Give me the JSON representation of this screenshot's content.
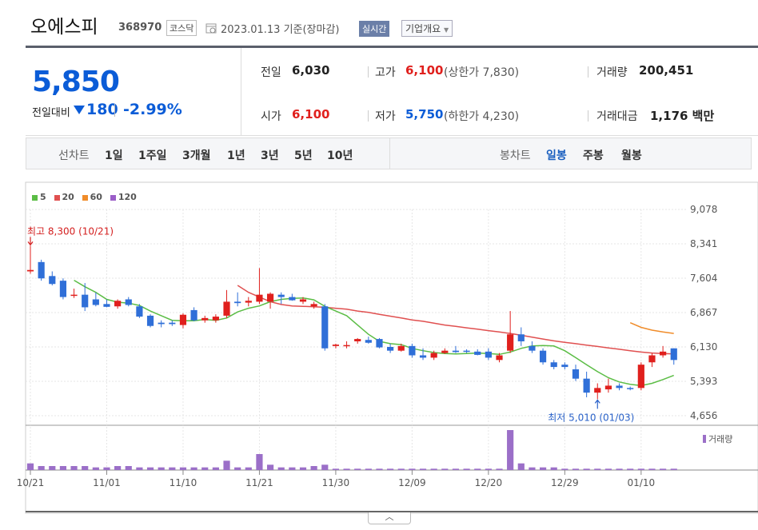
{
  "header": {
    "name": "오에스피",
    "code": "368970",
    "market": "코스닥",
    "date_text": "2023.01.13  기준(장마감)",
    "realtime_label": "실시간",
    "company_label": "기업개요"
  },
  "price": {
    "current": "5,850",
    "prev_label": "전일대비",
    "change": "180",
    "change_pct": "-2.99%"
  },
  "stats": {
    "prev_close_label": "전일",
    "prev_close": "6,030",
    "high_label": "고가",
    "high": "6,100",
    "upper_limit": "(상한가 7,830)",
    "volume_label": "거래량",
    "volume": "200,451",
    "open_label": "시가",
    "open": "6,100",
    "low_label": "저가",
    "low": "5,750",
    "lower_limit": "(하한가 4,230)",
    "amount_label": "거래대금",
    "amount": "1,176 백만"
  },
  "periods": {
    "line_label": "선차트",
    "line_items": [
      "1일",
      "1주일",
      "3개월",
      "1년",
      "3년",
      "5년",
      "10년"
    ],
    "candle_label": "봉차트",
    "candle_items": [
      "일봉",
      "주봉",
      "월봉"
    ],
    "active_candle": "일봉"
  },
  "colors": {
    "up": "#e0201d",
    "down": "#2f6fd8",
    "ma5": "#5bbd45",
    "ma20": "#e05050",
    "ma60": "#f08c2a",
    "ma120": "#9b5ec8",
    "volume": "#9b6fc8"
  },
  "chart_data": {
    "type": "candlestick",
    "legend": [
      {
        "name": "5",
        "color": "#5bbd45"
      },
      {
        "name": "20",
        "color": "#e05050"
      },
      {
        "name": "60",
        "color": "#f08c2a"
      },
      {
        "name": "120",
        "color": "#9b5ec8"
      }
    ],
    "ylim": [
      4656,
      9078
    ],
    "y_ticks": [
      "9,078",
      "8,341",
      "7,604",
      "6,867",
      "6,130",
      "5,393",
      "4,656"
    ],
    "y_tick_values": [
      9078,
      8341,
      7604,
      6867,
      6130,
      5393,
      4656
    ],
    "x_ticks": [
      "10/21",
      "11/01",
      "11/10",
      "11/21",
      "11/30",
      "12/09",
      "12/20",
      "12/29",
      "01/10"
    ],
    "x_tick_index": [
      0,
      7,
      14,
      21,
      28,
      35,
      42,
      49,
      56
    ],
    "annotations": {
      "high": {
        "text": "최고 8,300 (10/21)",
        "index": 0,
        "value": 8300
      },
      "low": {
        "text": "최저 5,010 (01/03)",
        "index": 52,
        "value": 5010
      }
    },
    "volume_label": "거래량",
    "candles": [
      {
        "o": 7750,
        "h": 8300,
        "l": 7700,
        "c": 7780
      },
      {
        "o": 7950,
        "h": 8000,
        "l": 7550,
        "c": 7600
      },
      {
        "o": 7650,
        "h": 7750,
        "l": 7450,
        "c": 7480
      },
      {
        "o": 7550,
        "h": 7600,
        "l": 7150,
        "c": 7200
      },
      {
        "o": 7250,
        "h": 7380,
        "l": 7180,
        "c": 7250
      },
      {
        "o": 7250,
        "h": 7500,
        "l": 6900,
        "c": 6980
      },
      {
        "o": 7150,
        "h": 7300,
        "l": 7000,
        "c": 7030
      },
      {
        "o": 7050,
        "h": 7150,
        "l": 6980,
        "c": 6990
      },
      {
        "o": 7000,
        "h": 7150,
        "l": 6950,
        "c": 7120
      },
      {
        "o": 7150,
        "h": 7200,
        "l": 7000,
        "c": 7030
      },
      {
        "o": 7000,
        "h": 7050,
        "l": 6750,
        "c": 6780
      },
      {
        "o": 6800,
        "h": 6830,
        "l": 6550,
        "c": 6580
      },
      {
        "o": 6650,
        "h": 6700,
        "l": 6550,
        "c": 6620
      },
      {
        "o": 6650,
        "h": 6700,
        "l": 6580,
        "c": 6620
      },
      {
        "o": 6600,
        "h": 6850,
        "l": 6530,
        "c": 6820
      },
      {
        "o": 6920,
        "h": 6980,
        "l": 6680,
        "c": 6700
      },
      {
        "o": 6700,
        "h": 6800,
        "l": 6650,
        "c": 6750
      },
      {
        "o": 6700,
        "h": 6830,
        "l": 6650,
        "c": 6780
      },
      {
        "o": 6800,
        "h": 7350,
        "l": 6750,
        "c": 7100
      },
      {
        "o": 7100,
        "h": 7300,
        "l": 7000,
        "c": 7070
      },
      {
        "o": 7080,
        "h": 7200,
        "l": 7000,
        "c": 7120
      },
      {
        "o": 7100,
        "h": 7820,
        "l": 7050,
        "c": 7250
      },
      {
        "o": 7100,
        "h": 7300,
        "l": 6950,
        "c": 7270
      },
      {
        "o": 7250,
        "h": 7300,
        "l": 7050,
        "c": 7200
      },
      {
        "o": 7200,
        "h": 7270,
        "l": 7120,
        "c": 7130
      },
      {
        "o": 7100,
        "h": 7200,
        "l": 7050,
        "c": 7150
      },
      {
        "o": 7000,
        "h": 7100,
        "l": 6950,
        "c": 7050
      },
      {
        "o": 7000,
        "h": 7050,
        "l": 6050,
        "c": 6100
      },
      {
        "o": 6150,
        "h": 6200,
        "l": 6100,
        "c": 6180
      },
      {
        "o": 6150,
        "h": 6250,
        "l": 6100,
        "c": 6170
      },
      {
        "o": 6250,
        "h": 6320,
        "l": 6200,
        "c": 6300
      },
      {
        "o": 6280,
        "h": 6350,
        "l": 6200,
        "c": 6220
      },
      {
        "o": 6300,
        "h": 6320,
        "l": 6100,
        "c": 6120
      },
      {
        "o": 6130,
        "h": 6200,
        "l": 6000,
        "c": 6050
      },
      {
        "o": 6050,
        "h": 6200,
        "l": 6030,
        "c": 6150
      },
      {
        "o": 6150,
        "h": 6200,
        "l": 5900,
        "c": 5950
      },
      {
        "o": 5950,
        "h": 6100,
        "l": 5850,
        "c": 5900
      },
      {
        "o": 5900,
        "h": 6050,
        "l": 5850,
        "c": 6000
      },
      {
        "o": 6000,
        "h": 6100,
        "l": 5980,
        "c": 6050
      },
      {
        "o": 6050,
        "h": 6150,
        "l": 6000,
        "c": 6020
      },
      {
        "o": 6050,
        "h": 6080,
        "l": 6000,
        "c": 6030
      },
      {
        "o": 6030,
        "h": 6080,
        "l": 5950,
        "c": 5960
      },
      {
        "o": 6030,
        "h": 6100,
        "l": 5850,
        "c": 5900
      },
      {
        "o": 5850,
        "h": 6000,
        "l": 5800,
        "c": 5950
      },
      {
        "o": 6050,
        "h": 6900,
        "l": 6000,
        "c": 6400
      },
      {
        "o": 6400,
        "h": 6550,
        "l": 6150,
        "c": 6250
      },
      {
        "o": 6150,
        "h": 6250,
        "l": 6000,
        "c": 6050
      },
      {
        "o": 6050,
        "h": 6100,
        "l": 5750,
        "c": 5800
      },
      {
        "o": 5800,
        "h": 5850,
        "l": 5650,
        "c": 5700
      },
      {
        "o": 5750,
        "h": 5800,
        "l": 5650,
        "c": 5700
      },
      {
        "o": 5650,
        "h": 5750,
        "l": 5400,
        "c": 5450
      },
      {
        "o": 5450,
        "h": 5600,
        "l": 5050,
        "c": 5150
      },
      {
        "o": 5150,
        "h": 5350,
        "l": 5010,
        "c": 5250
      },
      {
        "o": 5220,
        "h": 5450,
        "l": 5150,
        "c": 5300
      },
      {
        "o": 5300,
        "h": 5350,
        "l": 5200,
        "c": 5250
      },
      {
        "o": 5250,
        "h": 5280,
        "l": 5200,
        "c": 5230
      },
      {
        "o": 5250,
        "h": 5800,
        "l": 5200,
        "c": 5750
      },
      {
        "o": 5800,
        "h": 6000,
        "l": 5700,
        "c": 5950
      },
      {
        "o": 5950,
        "h": 6150,
        "l": 5900,
        "c": 6030
      },
      {
        "o": 6100,
        "h": 6100,
        "l": 5750,
        "c": 5850
      }
    ],
    "volume": [
      5,
      3,
      3,
      3,
      3,
      3,
      2,
      2,
      3,
      3,
      2,
      2,
      2,
      2,
      2,
      2,
      2,
      2,
      7,
      2,
      2,
      12,
      4,
      2,
      2,
      2,
      3,
      4,
      1,
      1,
      1,
      1,
      1,
      1,
      1,
      1,
      1,
      1,
      1,
      1,
      1,
      1,
      1,
      1,
      30,
      5,
      2,
      2,
      2,
      1,
      1,
      1,
      1,
      1,
      1,
      1,
      1,
      1,
      1,
      1
    ],
    "ma5": [
      null,
      null,
      null,
      null,
      7560,
      7420,
      7300,
      7150,
      7090,
      7070,
      7020,
      6900,
      6800,
      6700,
      6690,
      6690,
      6720,
      6700,
      6750,
      6880,
      6960,
      7010,
      7100,
      7150,
      7170,
      7180,
      7140,
      7000,
      6900,
      6800,
      6600,
      6400,
      6250,
      6200,
      6180,
      6100,
      6050,
      6010,
      5990,
      5980,
      5990,
      6000,
      5990,
      5970,
      6020,
      6100,
      6150,
      6160,
      6150,
      6050,
      5900,
      5750,
      5600,
      5470,
      5380,
      5330,
      5300,
      5350,
      5430,
      5520
    ],
    "ma20": [
      null,
      null,
      null,
      null,
      null,
      null,
      null,
      null,
      null,
      null,
      null,
      null,
      null,
      null,
      null,
      null,
      null,
      null,
      null,
      7450,
      7300,
      7200,
      7100,
      7040,
      7010,
      7000,
      6990,
      6980,
      6960,
      6940,
      6900,
      6870,
      6830,
      6790,
      6750,
      6710,
      6680,
      6640,
      6600,
      6570,
      6540,
      6510,
      6480,
      6450,
      6420,
      6380,
      6340,
      6300,
      6260,
      6230,
      6200,
      6170,
      6140,
      6110,
      6080,
      6050,
      6020,
      6000,
      5990,
      5980
    ],
    "ma60": [
      null,
      null,
      null,
      null,
      null,
      null,
      null,
      null,
      null,
      null,
      null,
      null,
      null,
      null,
      null,
      null,
      null,
      null,
      null,
      null,
      null,
      null,
      null,
      null,
      null,
      null,
      null,
      null,
      null,
      null,
      null,
      null,
      null,
      null,
      null,
      null,
      null,
      null,
      null,
      null,
      null,
      null,
      null,
      null,
      null,
      null,
      null,
      null,
      null,
      null,
      null,
      null,
      null,
      null,
      null,
      6650,
      6550,
      6490,
      6450,
      6420
    ]
  }
}
